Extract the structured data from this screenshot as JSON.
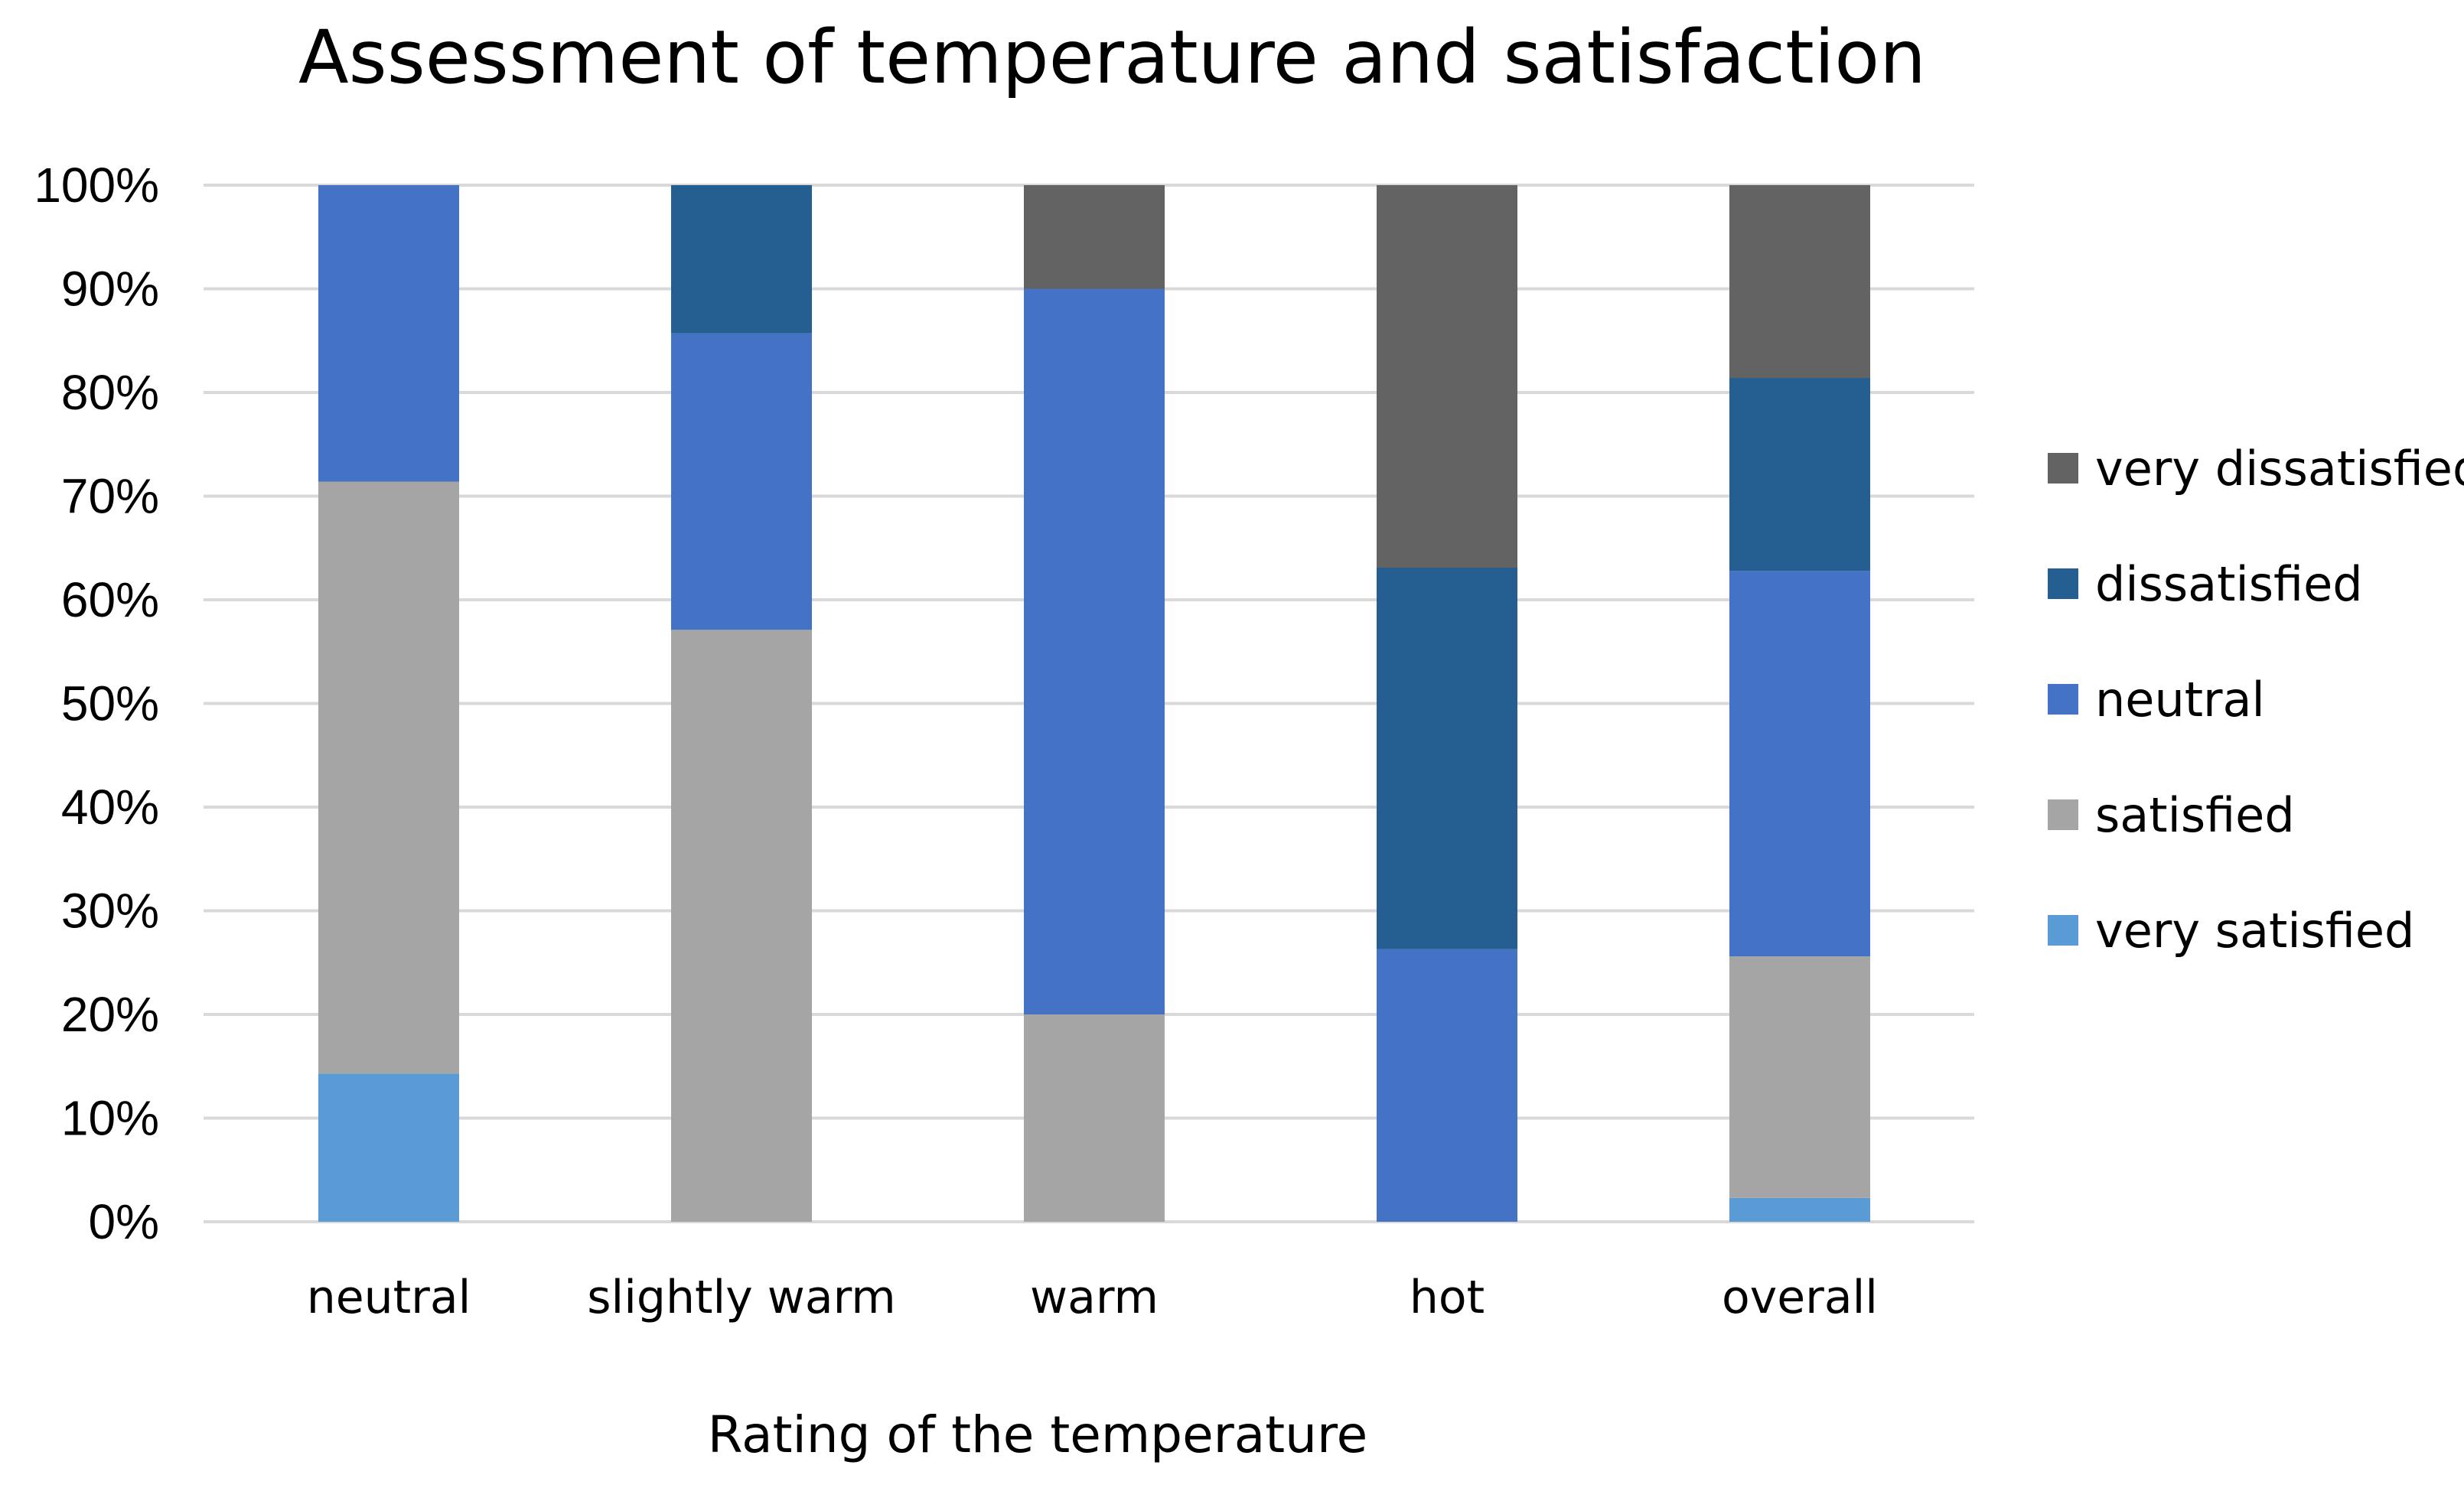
{
  "chart_data": {
    "type": "bar",
    "stacked": true,
    "title": "Assessment of temperature and satisfaction",
    "xlabel": "Rating of the temperature",
    "ylabel": "",
    "ylim": [
      0,
      100
    ],
    "yticks": [
      "0%",
      "10%",
      "20%",
      "30%",
      "40%",
      "50%",
      "60%",
      "70%",
      "80%",
      "90%",
      "100%"
    ],
    "grid": true,
    "legend_position": "right",
    "categories": [
      "neutral",
      "slightly warm",
      "warm",
      "hot",
      "overall"
    ],
    "series": [
      {
        "name": "very satisfied",
        "color": "#5b9bd5",
        "values": [
          14.3,
          0,
          0,
          0,
          2.3
        ]
      },
      {
        "name": "satisfied",
        "color": "#a5a5a5",
        "values": [
          57.1,
          57.1,
          20,
          0,
          23.3
        ]
      },
      {
        "name": "neutral",
        "color": "#4472c4",
        "values": [
          28.6,
          28.6,
          70,
          26.3,
          37.2
        ]
      },
      {
        "name": "dissatisfied",
        "color": "#255e91",
        "values": [
          0,
          14.3,
          0,
          36.8,
          18.6
        ]
      },
      {
        "name": "very dissatisfied",
        "color": "#636363",
        "values": [
          0,
          0,
          10,
          36.9,
          18.6
        ]
      }
    ]
  }
}
